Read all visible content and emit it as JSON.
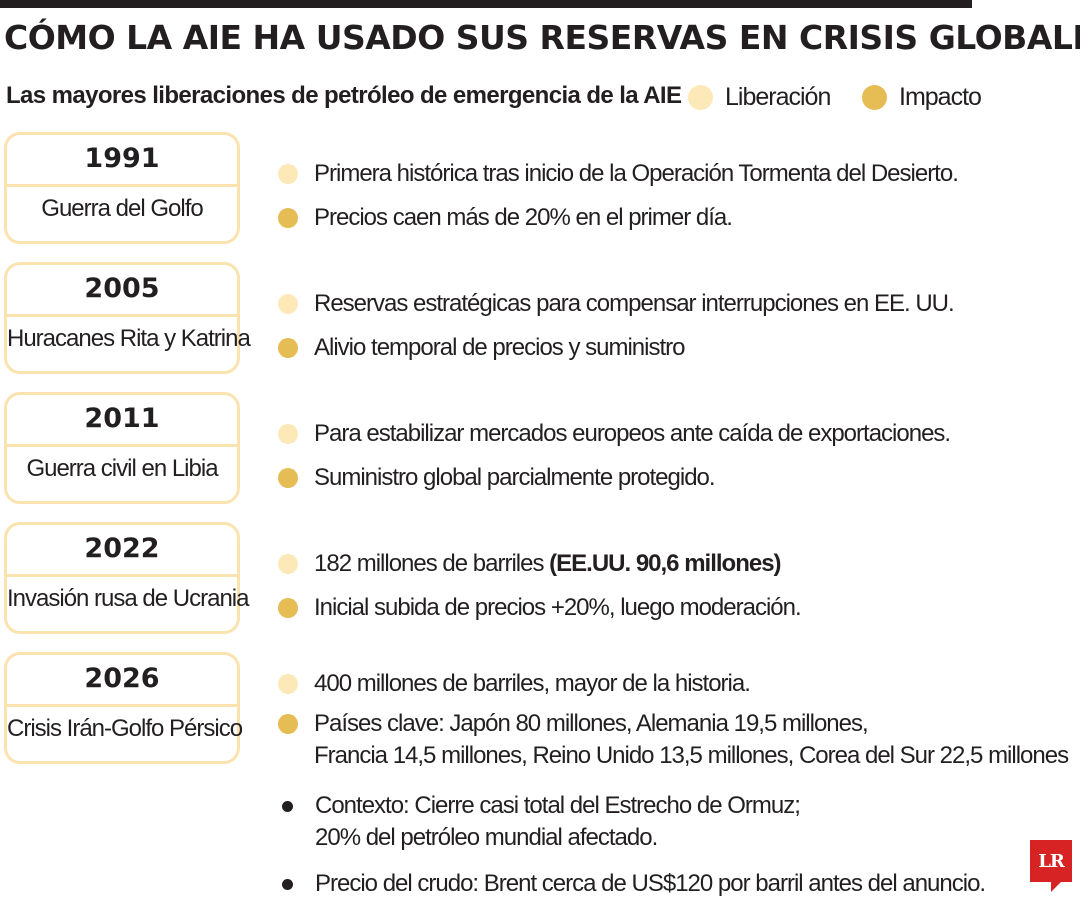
{
  "title": "CÓMO LA AIE HA USADO SUS RESERVAS EN CRISIS GLOBALES",
  "subtitle": "Las mayores liberaciones de petróleo de emergencia de la AIE",
  "legend": {
    "liberacion": "Liberación",
    "impacto": "Impacto"
  },
  "colors": {
    "liberacion": "#fde8b8",
    "impacto": "#e6bd55",
    "card_border": "#fbe3b0",
    "text": "#231f20",
    "logo": "#d72323"
  },
  "events": [
    {
      "year": "1991",
      "name": "Guerra del Golfo",
      "liberacion": "Primera histórica tras inicio de la Operación Tormenta del Desierto.",
      "impacto": "Precios caen más de 20% en el primer día."
    },
    {
      "year": "2005",
      "name": "Huracanes Rita y Katrina",
      "liberacion": "Reservas estratégicas para compensar interrupciones en EE.  UU.",
      "impacto": "Alivio temporal de precios y suministro"
    },
    {
      "year": "2011",
      "name": "Guerra civil en Libia",
      "liberacion": "Para estabilizar mercados europeos ante caída de exportaciones.",
      "impacto": "Suministro global parcialmente protegido."
    },
    {
      "year": "2022",
      "name": "Invasión rusa de Ucrania",
      "liberacion": "182 millones de barriles ",
      "liberacion_bold": "(EE.UU. 90,6 millones)",
      "impacto": "Inicial subida de precios +20%, luego moderación."
    },
    {
      "year": "2026",
      "name": "Crisis Irán-Golfo Pérsico",
      "liberacion": "400 millones de barriles, mayor de la historia.",
      "impacto_line1": "Países clave: Japón 80 millones, Alemania 19,5 millones,",
      "impacto_line2": "Francia 14,5 millones, Reino Unido 13,5 millones, Corea del Sur 22,5 millones"
    }
  ],
  "notes": [
    {
      "line1": "Contexto: Cierre casi total del Estrecho de Ormuz;",
      "line2": "20% del petróleo mundial afectado."
    },
    {
      "line1": "Precio del crudo: Brent cerca de US$120 por barril antes del anuncio."
    }
  ],
  "logo": "LR"
}
